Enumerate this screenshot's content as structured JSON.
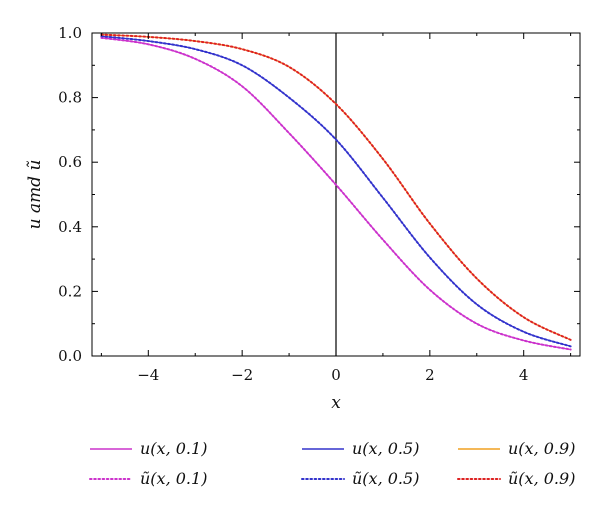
{
  "chart_data": {
    "type": "line",
    "xlabel": "x",
    "ylabel": "u amd ũ",
    "xlim": [
      -5.2,
      5.2
    ],
    "ylim": [
      0.0,
      1.0
    ],
    "x_ticks": [
      -4,
      -2,
      0,
      2,
      4
    ],
    "x_tick_labels": [
      "−4",
      "−2",
      "0",
      "2",
      "4"
    ],
    "y_ticks": [
      0.0,
      0.2,
      0.4,
      0.6,
      0.8,
      1.0
    ],
    "y_tick_labels": [
      "0.0",
      "0.2",
      "0.4",
      "0.6",
      "0.8",
      "1.0"
    ],
    "grid": false,
    "legend_position": "bottom",
    "reference_line_x": 0,
    "x": [
      -5,
      -4,
      -3,
      -2,
      -1,
      0,
      1,
      2,
      3,
      4,
      5
    ],
    "series": [
      {
        "name": "u(x, 0.1)",
        "style": "solid",
        "color": "#cc33cc",
        "values": [
          0.985,
          0.965,
          0.92,
          0.835,
          0.69,
          0.53,
          0.36,
          0.205,
          0.1,
          0.048,
          0.02
        ]
      },
      {
        "name": "ũ(x, 0.1)",
        "style": "dotted",
        "color": "#cc33cc",
        "values": [
          0.985,
          0.965,
          0.92,
          0.835,
          0.69,
          0.53,
          0.36,
          0.205,
          0.1,
          0.048,
          0.02
        ]
      },
      {
        "name": "u(x, 0.5)",
        "style": "solid",
        "color": "#3333cc",
        "values": [
          0.99,
          0.975,
          0.95,
          0.9,
          0.8,
          0.67,
          0.49,
          0.305,
          0.16,
          0.075,
          0.03
        ]
      },
      {
        "name": "ũ(x, 0.5)",
        "style": "dotted",
        "color": "#3333cc",
        "values": [
          0.99,
          0.975,
          0.95,
          0.9,
          0.8,
          0.67,
          0.49,
          0.305,
          0.16,
          0.075,
          0.03
        ]
      },
      {
        "name": "u(x, 0.9)",
        "style": "solid",
        "color": "#f0a020",
        "values": [
          0.995,
          0.988,
          0.975,
          0.95,
          0.895,
          0.78,
          0.61,
          0.41,
          0.24,
          0.12,
          0.05
        ]
      },
      {
        "name": "ũ(x, 0.9)",
        "style": "dotted",
        "color": "#dd2222",
        "values": [
          0.995,
          0.988,
          0.975,
          0.95,
          0.895,
          0.78,
          0.61,
          0.41,
          0.24,
          0.12,
          0.05
        ]
      }
    ]
  }
}
